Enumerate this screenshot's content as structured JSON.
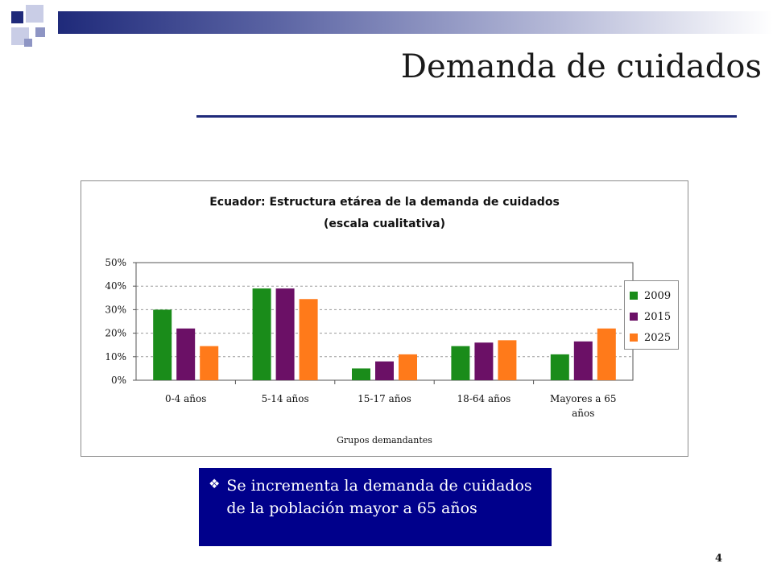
{
  "slide": {
    "title": "Demanda de cuidados",
    "note": "Se incrementa la demanda de cuidados de la población mayor a 65 años",
    "page_number": "4"
  },
  "colors": {
    "accent": "#1f2a7a",
    "note_box": "#00008b",
    "series_2009": "#1a8c1a",
    "series_2015": "#6b1066",
    "series_2025": "#ff7a1a"
  },
  "chart_data": {
    "type": "bar",
    "title": "Ecuador: Estructura etárea de la demanda de cuidados",
    "subtitle": "(escala cualitativa)",
    "xlabel": "Grupos demandantes",
    "ylabel": "",
    "ylim": [
      0,
      50
    ],
    "yticks": [
      "0%",
      "10%",
      "20%",
      "30%",
      "40%",
      "50%"
    ],
    "grid": true,
    "legend_position": "right",
    "categories": [
      "0-4 años",
      "5-14 años",
      "15-17 años",
      "18-64 años",
      "Mayores a 65 años"
    ],
    "series": [
      {
        "name": "2009",
        "color": "#1a8c1a",
        "values": [
          30,
          39,
          5,
          14.5,
          11
        ]
      },
      {
        "name": "2015",
        "color": "#6b1066",
        "values": [
          22,
          39,
          8,
          16,
          16.5
        ]
      },
      {
        "name": "2025",
        "color": "#ff7a1a",
        "values": [
          14.5,
          34.5,
          11,
          17,
          22
        ]
      }
    ]
  }
}
